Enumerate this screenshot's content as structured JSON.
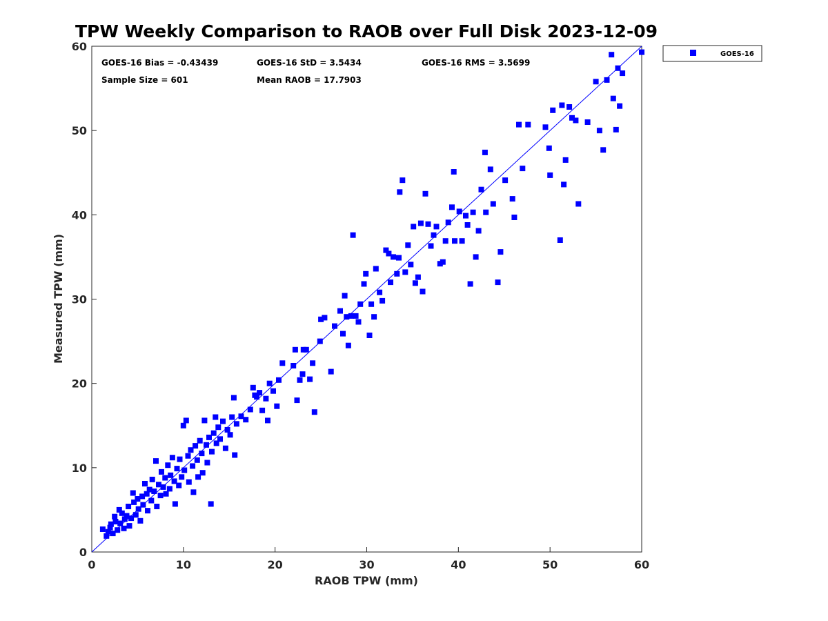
{
  "chart_data": {
    "type": "scatter",
    "title": "TPW Weekly Comparison to RAOB over Full Disk 2023-12-09",
    "xlabel": "RAOB TPW (mm)",
    "ylabel": "Measured TPW (mm)",
    "xlim": [
      0,
      60
    ],
    "ylim": [
      0,
      60
    ],
    "xticks": [
      "0",
      "10",
      "20",
      "30",
      "40",
      "50",
      "60"
    ],
    "yticks": [
      "0",
      "10",
      "20",
      "30",
      "40",
      "50",
      "60"
    ],
    "grid": false,
    "legend_position": "outside-top-right",
    "reference_line": {
      "label": "1:1",
      "from": [
        0,
        0
      ],
      "to": [
        60,
        60
      ],
      "color": "#0000ff"
    },
    "stats": {
      "bias": "GOES-16 Bias = -0.43439",
      "std": "GOES-16 StD = 3.5434",
      "rms": "GOES-16 RMS = 3.5699",
      "sample_size": "Sample Size = 601",
      "mean_raob": "Mean RAOB = 17.7903"
    },
    "series": [
      {
        "name": "GOES-16",
        "color": "#0000ff",
        "marker": "square",
        "points": [
          [
            1.2,
            2.7
          ],
          [
            1.6,
            1.9
          ],
          [
            1.8,
            2.4
          ],
          [
            2.0,
            2.9
          ],
          [
            2.1,
            3.3
          ],
          [
            2.3,
            2.2
          ],
          [
            2.5,
            4.2
          ],
          [
            2.6,
            3.6
          ],
          [
            2.8,
            2.6
          ],
          [
            3.0,
            5.0
          ],
          [
            3.1,
            3.4
          ],
          [
            3.3,
            4.6
          ],
          [
            3.5,
            2.8
          ],
          [
            3.6,
            3.9
          ],
          [
            3.8,
            4.3
          ],
          [
            4.0,
            5.4
          ],
          [
            4.1,
            3.1
          ],
          [
            4.3,
            4.0
          ],
          [
            4.5,
            7.0
          ],
          [
            4.6,
            5.9
          ],
          [
            4.8,
            4.4
          ],
          [
            5.0,
            6.3
          ],
          [
            5.1,
            5.1
          ],
          [
            5.3,
            3.7
          ],
          [
            5.5,
            6.6
          ],
          [
            5.6,
            5.6
          ],
          [
            5.8,
            8.1
          ],
          [
            6.0,
            6.9
          ],
          [
            6.1,
            4.9
          ],
          [
            6.3,
            7.4
          ],
          [
            6.5,
            6.1
          ],
          [
            6.6,
            8.6
          ],
          [
            6.8,
            7.2
          ],
          [
            7.0,
            10.8
          ],
          [
            7.1,
            5.4
          ],
          [
            7.3,
            8.0
          ],
          [
            7.5,
            6.7
          ],
          [
            7.6,
            9.5
          ],
          [
            7.8,
            7.7
          ],
          [
            8.0,
            8.8
          ],
          [
            8.1,
            6.9
          ],
          [
            8.3,
            10.3
          ],
          [
            8.5,
            7.5
          ],
          [
            8.6,
            9.1
          ],
          [
            8.8,
            11.2
          ],
          [
            9.0,
            8.4
          ],
          [
            9.1,
            5.7
          ],
          [
            9.3,
            9.9
          ],
          [
            9.5,
            7.9
          ],
          [
            9.6,
            11.0
          ],
          [
            9.8,
            8.9
          ],
          [
            10.0,
            15.0
          ],
          [
            10.1,
            9.7
          ],
          [
            10.3,
            15.6
          ],
          [
            10.5,
            11.4
          ],
          [
            10.6,
            8.3
          ],
          [
            10.8,
            12.1
          ],
          [
            11.0,
            10.2
          ],
          [
            11.1,
            7.1
          ],
          [
            11.3,
            12.6
          ],
          [
            11.5,
            10.9
          ],
          [
            11.6,
            8.9
          ],
          [
            11.8,
            13.2
          ],
          [
            12.0,
            11.7
          ],
          [
            12.1,
            9.4
          ],
          [
            12.3,
            15.6
          ],
          [
            12.5,
            12.7
          ],
          [
            12.6,
            10.6
          ],
          [
            12.8,
            13.6
          ],
          [
            13.0,
            5.7
          ],
          [
            13.1,
            11.9
          ],
          [
            13.3,
            14.1
          ],
          [
            13.5,
            16.0
          ],
          [
            13.6,
            12.9
          ],
          [
            13.8,
            14.8
          ],
          [
            14.0,
            13.4
          ],
          [
            14.3,
            15.5
          ],
          [
            14.6,
            12.3
          ],
          [
            14.8,
            14.5
          ],
          [
            15.1,
            13.9
          ],
          [
            15.3,
            16.0
          ],
          [
            15.5,
            18.3
          ],
          [
            15.6,
            11.5
          ],
          [
            15.8,
            15.2
          ],
          [
            16.3,
            16.1
          ],
          [
            16.8,
            15.7
          ],
          [
            17.3,
            16.9
          ],
          [
            17.6,
            19.5
          ],
          [
            17.8,
            18.6
          ],
          [
            18.0,
            18.4
          ],
          [
            18.3,
            18.9
          ],
          [
            18.6,
            16.8
          ],
          [
            19.0,
            18.2
          ],
          [
            19.2,
            15.6
          ],
          [
            19.4,
            20.0
          ],
          [
            19.8,
            19.1
          ],
          [
            20.2,
            17.3
          ],
          [
            20.4,
            20.4
          ],
          [
            20.8,
            22.4
          ],
          [
            22.0,
            22.1
          ],
          [
            22.2,
            24.0
          ],
          [
            22.4,
            18.0
          ],
          [
            22.7,
            20.4
          ],
          [
            23.0,
            21.1
          ],
          [
            23.1,
            24.0
          ],
          [
            23.4,
            24.0
          ],
          [
            23.8,
            20.5
          ],
          [
            24.1,
            22.4
          ],
          [
            24.3,
            16.6
          ],
          [
            24.9,
            25.0
          ],
          [
            25.0,
            27.6
          ],
          [
            25.4,
            27.8
          ],
          [
            26.1,
            21.4
          ],
          [
            26.5,
            26.8
          ],
          [
            27.1,
            28.6
          ],
          [
            27.4,
            25.9
          ],
          [
            27.6,
            30.4
          ],
          [
            27.8,
            27.9
          ],
          [
            28.0,
            24.5
          ],
          [
            28.3,
            28.0
          ],
          [
            28.5,
            37.6
          ],
          [
            28.8,
            28.0
          ],
          [
            29.1,
            27.3
          ],
          [
            29.3,
            29.4
          ],
          [
            29.7,
            31.8
          ],
          [
            29.9,
            33.0
          ],
          [
            30.3,
            25.7
          ],
          [
            30.5,
            29.4
          ],
          [
            30.8,
            27.9
          ],
          [
            31.0,
            33.6
          ],
          [
            31.4,
            30.8
          ],
          [
            31.7,
            29.8
          ],
          [
            32.1,
            35.8
          ],
          [
            32.4,
            35.4
          ],
          [
            32.6,
            32.0
          ],
          [
            32.9,
            35.0
          ],
          [
            33.3,
            33.0
          ],
          [
            33.5,
            34.9
          ],
          [
            33.6,
            42.7
          ],
          [
            33.9,
            44.1
          ],
          [
            34.2,
            33.2
          ],
          [
            34.5,
            36.4
          ],
          [
            34.8,
            34.1
          ],
          [
            35.1,
            38.6
          ],
          [
            35.3,
            31.9
          ],
          [
            35.6,
            32.6
          ],
          [
            35.9,
            39.0
          ],
          [
            36.1,
            30.9
          ],
          [
            36.4,
            42.5
          ],
          [
            36.7,
            38.9
          ],
          [
            37.0,
            36.3
          ],
          [
            37.3,
            37.6
          ],
          [
            37.6,
            38.6
          ],
          [
            38.0,
            34.2
          ],
          [
            38.3,
            34.4
          ],
          [
            38.6,
            36.9
          ],
          [
            38.9,
            39.1
          ],
          [
            39.3,
            40.9
          ],
          [
            39.5,
            45.1
          ],
          [
            39.6,
            36.9
          ],
          [
            40.1,
            40.4
          ],
          [
            40.4,
            36.9
          ],
          [
            40.8,
            39.9
          ],
          [
            41.0,
            38.8
          ],
          [
            41.3,
            31.8
          ],
          [
            41.6,
            40.3
          ],
          [
            41.9,
            35.0
          ],
          [
            42.2,
            38.1
          ],
          [
            42.5,
            43.0
          ],
          [
            42.9,
            47.4
          ],
          [
            43.0,
            40.3
          ],
          [
            43.5,
            45.4
          ],
          [
            43.8,
            41.3
          ],
          [
            44.3,
            32.0
          ],
          [
            44.6,
            35.6
          ],
          [
            45.1,
            44.1
          ],
          [
            45.9,
            41.9
          ],
          [
            46.1,
            39.7
          ],
          [
            46.6,
            50.7
          ],
          [
            47.0,
            45.5
          ],
          [
            47.6,
            50.7
          ],
          [
            49.5,
            50.4
          ],
          [
            49.9,
            47.9
          ],
          [
            50.0,
            44.7
          ],
          [
            50.3,
            52.4
          ],
          [
            51.1,
            37.0
          ],
          [
            51.3,
            53.0
          ],
          [
            51.5,
            43.6
          ],
          [
            51.7,
            46.5
          ],
          [
            52.1,
            52.8
          ],
          [
            52.4,
            51.5
          ],
          [
            52.8,
            51.2
          ],
          [
            53.1,
            41.3
          ],
          [
            54.1,
            51.0
          ],
          [
            55.0,
            55.8
          ],
          [
            55.4,
            50.0
          ],
          [
            55.8,
            47.7
          ],
          [
            56.2,
            56.0
          ],
          [
            56.7,
            59.0
          ],
          [
            56.9,
            53.8
          ],
          [
            57.2,
            50.1
          ],
          [
            57.4,
            57.4
          ],
          [
            57.6,
            52.9
          ],
          [
            57.9,
            56.8
          ],
          [
            60.0,
            59.3
          ]
        ]
      }
    ]
  }
}
